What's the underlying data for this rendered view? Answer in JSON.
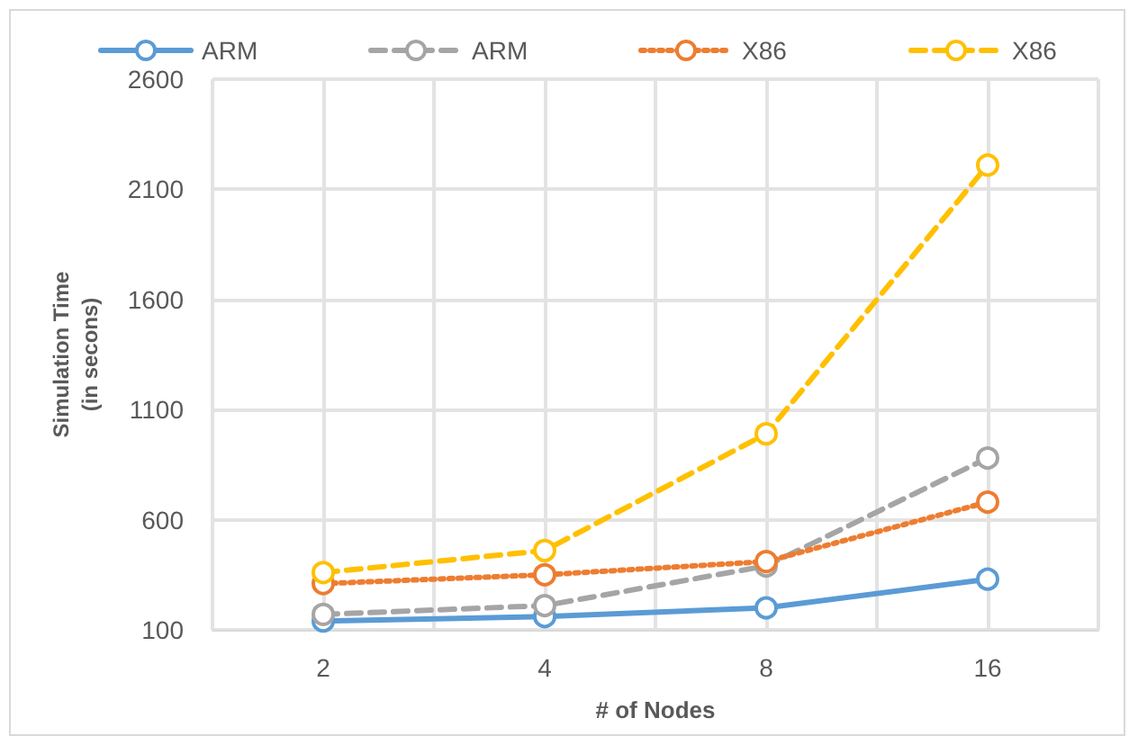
{
  "chart_data": {
    "type": "line",
    "xlabel": "# of Nodes",
    "ylabel": "Simulation Time\n(in secons)",
    "categories": [
      "2",
      "4",
      "8",
      "16"
    ],
    "series": [
      {
        "name": "ARM",
        "color": "#5b9bd5",
        "line_style": "solid",
        "values": [
          140,
          160,
          200,
          330
        ]
      },
      {
        "name": "ARM",
        "color": "#a5a5a5",
        "line_style": "dashed",
        "values": [
          170,
          210,
          390,
          880
        ]
      },
      {
        "name": "X86",
        "color": "#ed7d31",
        "line_style": "dotted",
        "values": [
          310,
          350,
          410,
          680
        ]
      },
      {
        "name": "X86",
        "color": "#ffc000",
        "line_style": "dashed",
        "values": [
          360,
          460,
          990,
          2210
        ]
      }
    ],
    "ylim": [
      100,
      2600
    ],
    "yticks": [
      100,
      600,
      1100,
      1600,
      2100,
      2600
    ],
    "grid": true,
    "legend": "top",
    "marker": "circle"
  }
}
